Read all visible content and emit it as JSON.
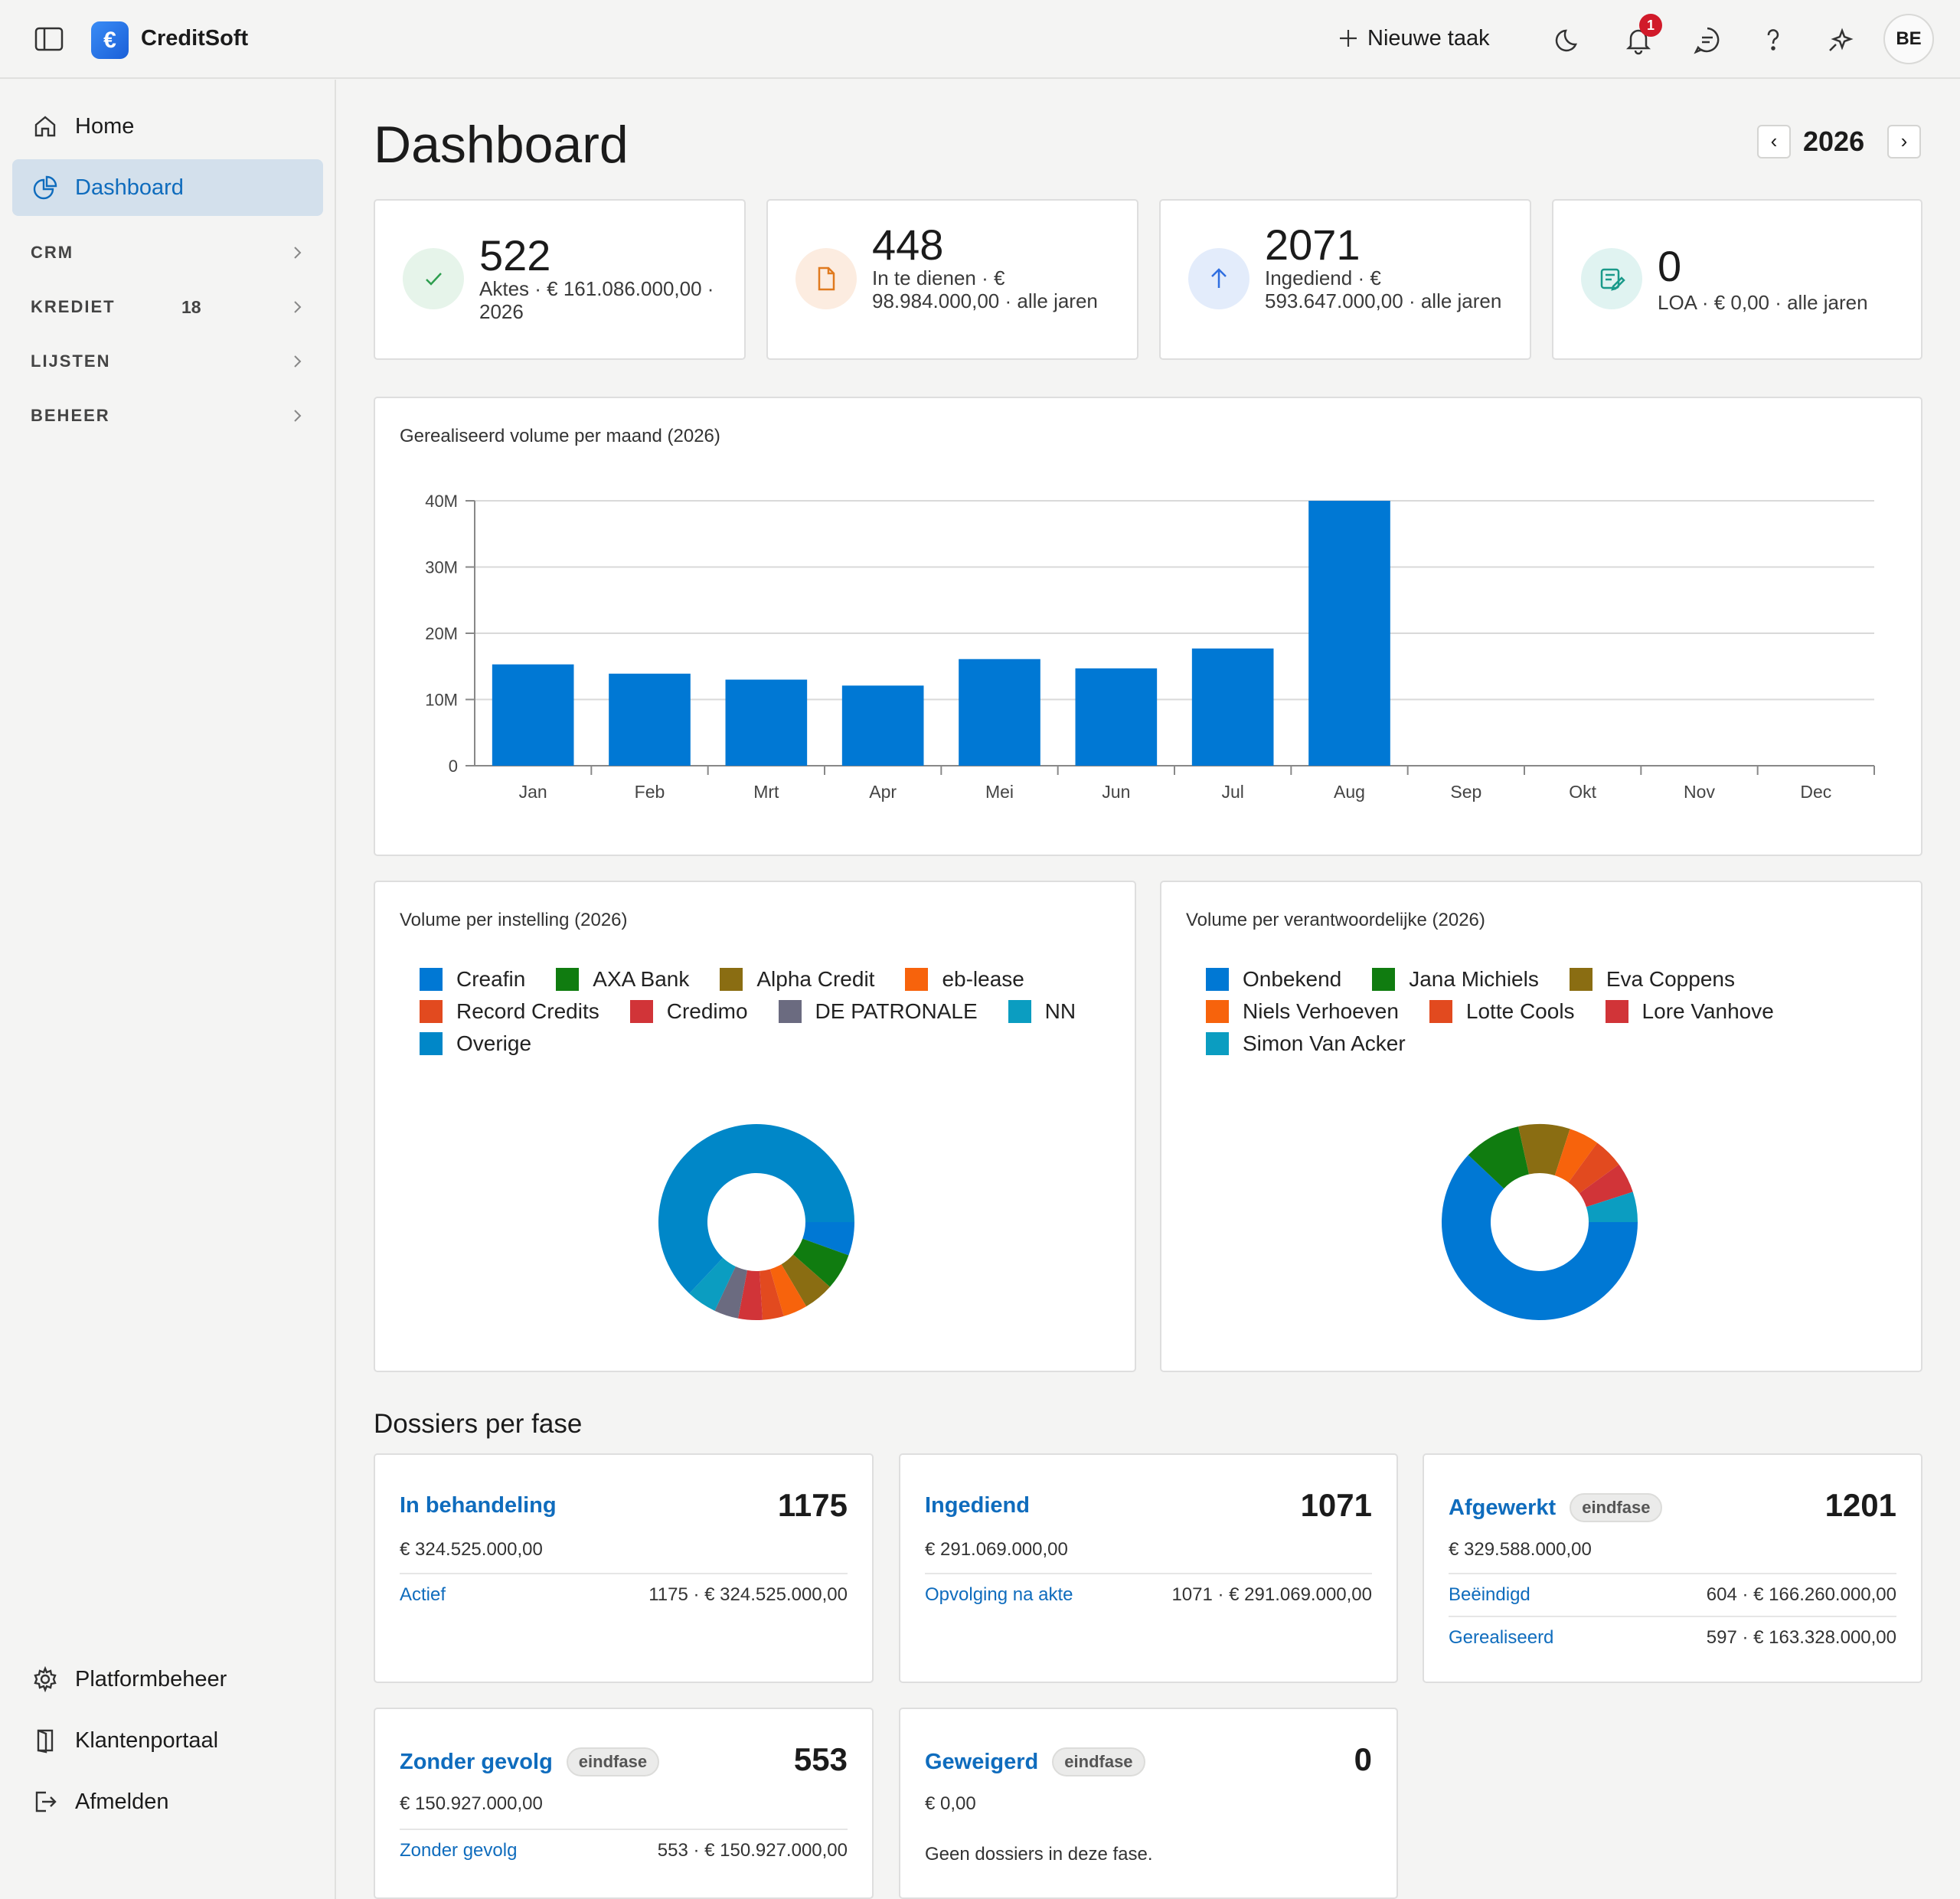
{
  "app": {
    "brand": "CreditSoft",
    "logo_glyph": "€",
    "new_task": "Nieuwe taak",
    "notifications": "1",
    "user_initials": "BE"
  },
  "sidebar": {
    "home": "Home",
    "dashboard": "Dashboard",
    "sections": [
      {
        "label": "CRM",
        "count": ""
      },
      {
        "label": "KREDIET",
        "count": "18"
      },
      {
        "label": "LIJSTEN",
        "count": ""
      },
      {
        "label": "BEHEER",
        "count": ""
      }
    ],
    "bottom": [
      "Platformbeheer",
      "Klantenportaal",
      "Afmelden"
    ]
  },
  "page": {
    "title": "Dashboard",
    "year": "2026"
  },
  "kpis": [
    {
      "value": "522",
      "desc": "Aktes · € 161.086.000,00 · 2026",
      "color": "#2e9e4f",
      "bg": "#e6f4ea",
      "icon": "check-icon"
    },
    {
      "value": "448",
      "desc": "In te dienen · € 98.984.000,00 · alle jaren",
      "color": "#e07a1f",
      "bg": "#fcece0",
      "icon": "document-icon"
    },
    {
      "value": "2071",
      "desc": "Ingediend · € 593.647.000,00 · alle jaren",
      "color": "#2f6ee0",
      "bg": "#e3ecfb",
      "icon": "arrow-up-icon"
    },
    {
      "value": "0",
      "desc": "LOA · € 0,00 · alle jaren",
      "color": "#1a9a8a",
      "bg": "#e0f3f1",
      "icon": "edit-note-icon"
    }
  ],
  "chart_data": [
    {
      "type": "bar",
      "title": "Gerealiseerd volume per maand (2026)",
      "categories": [
        "Jan",
        "Feb",
        "Mrt",
        "Apr",
        "Mei",
        "Jun",
        "Jul",
        "Aug",
        "Sep",
        "Okt",
        "Nov",
        "Dec"
      ],
      "values": [
        15.3,
        13.9,
        13.0,
        12.1,
        16.1,
        14.7,
        17.7,
        40.0,
        0,
        0,
        0,
        0
      ],
      "y_ticks": [
        "0",
        "10M",
        "20M",
        "30M",
        "40M"
      ],
      "ylim": [
        0,
        40
      ],
      "unit": "M",
      "color": "#0078d4",
      "grid": true
    },
    {
      "type": "pie",
      "title": "Volume per instelling (2026)",
      "donut": true,
      "labels": [
        "Creafin",
        "AXA Bank",
        "Alpha Credit",
        "eb-lease",
        "Record Credits",
        "Credimo",
        "DE PATRONALE",
        "NN",
        "Overige"
      ],
      "colors": [
        "#0078d4",
        "#107c10",
        "#8a6d12",
        "#f7630c",
        "#e24a1f",
        "#d13438",
        "#6b6b80",
        "#0b9dc1",
        "#0087c8"
      ],
      "values": [
        5.5,
        6.0,
        5.0,
        4.0,
        3.5,
        4.0,
        4.0,
        5.0,
        63.0
      ]
    },
    {
      "type": "pie",
      "title": "Volume per verantwoordelijke (2026)",
      "donut": true,
      "labels": [
        "Onbekend",
        "Jana Michiels",
        "Eva Coppens",
        "Niels Verhoeven",
        "Lotte Cools",
        "Lore Vanhove",
        "Simon Van Acker"
      ],
      "colors": [
        "#0078d4",
        "#107c10",
        "#8a6d12",
        "#f7630c",
        "#e24a1f",
        "#d13438",
        "#0b9dc1"
      ],
      "values": [
        62.0,
        9.5,
        8.5,
        5.0,
        5.0,
        5.0,
        5.0
      ]
    }
  ],
  "phases": {
    "title": "Dossiers per fase",
    "cards": [
      {
        "name": "In behandeling",
        "tag": "",
        "count": "1175",
        "amount": "€ 324.525.000,00",
        "rows": [
          {
            "label": "Actief",
            "value": "1175 · € 324.525.000,00"
          }
        ],
        "empty": ""
      },
      {
        "name": "Ingediend",
        "tag": "",
        "count": "1071",
        "amount": "€ 291.069.000,00",
        "rows": [
          {
            "label": "Opvolging na akte",
            "value": "1071 · € 291.069.000,00"
          }
        ],
        "empty": ""
      },
      {
        "name": "Afgewerkt",
        "tag": "eindfase",
        "count": "1201",
        "amount": "€ 329.588.000,00",
        "rows": [
          {
            "label": "Beëindigd",
            "value": "604 · € 166.260.000,00"
          },
          {
            "label": "Gerealiseerd",
            "value": "597 · € 163.328.000,00"
          }
        ],
        "empty": ""
      },
      {
        "name": "Zonder gevolg",
        "tag": "eindfase",
        "count": "553",
        "amount": "€ 150.927.000,00",
        "rows": [
          {
            "label": "Zonder gevolg",
            "value": "553 · € 150.927.000,00"
          }
        ],
        "empty": ""
      },
      {
        "name": "Geweigerd",
        "tag": "eindfase",
        "count": "0",
        "amount": "€ 0,00",
        "rows": [],
        "empty": "Geen dossiers in deze fase."
      }
    ]
  }
}
